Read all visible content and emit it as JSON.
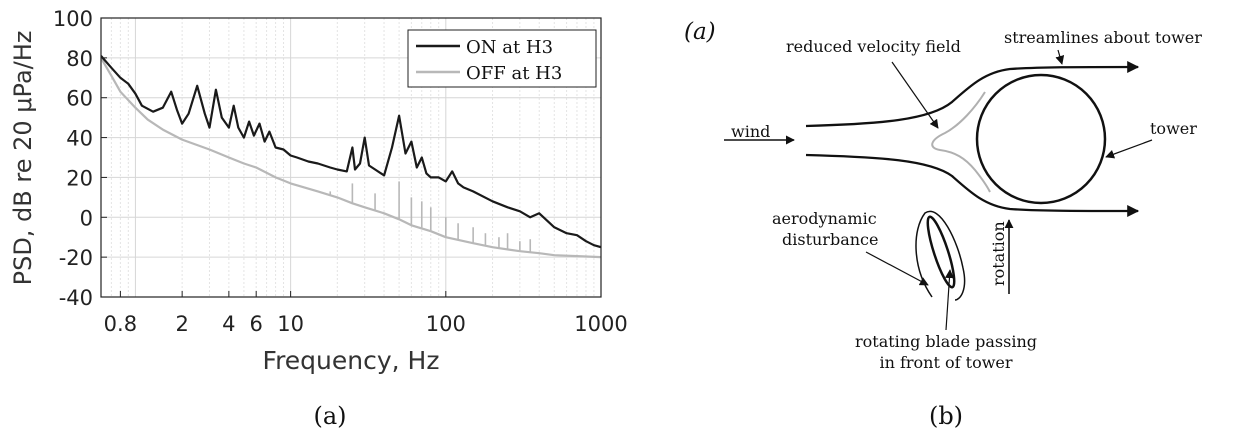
{
  "figure_a": {
    "caption": "(a)",
    "chart_data": {
      "type": "line",
      "xlabel": "Frequency, Hz",
      "ylabel": "PSD, dB re 20 μPa/Hz",
      "xscale": "log",
      "xlim": [
        0.6,
        1000
      ],
      "ylim": [
        -40,
        100
      ],
      "grid": true,
      "legend_position": "top-right",
      "x_ticks": [
        0.8,
        2,
        4,
        6,
        10,
        100,
        1000
      ],
      "x_tick_labels": [
        "0.8",
        "2",
        "4",
        "6",
        "10",
        "100",
        "1000"
      ],
      "y_ticks": [
        -40,
        -20,
        0,
        20,
        40,
        60,
        80,
        100
      ],
      "y_tick_labels": [
        "-40",
        "-20",
        "0",
        "20",
        "40",
        "60",
        "80",
        "100"
      ],
      "series": [
        {
          "name": "ON at H3",
          "color": "#1a1a1a",
          "points": [
            [
              0.6,
              81
            ],
            [
              0.7,
              75
            ],
            [
              0.8,
              70
            ],
            [
              0.9,
              67
            ],
            [
              1.0,
              62
            ],
            [
              1.1,
              56
            ],
            [
              1.3,
              53
            ],
            [
              1.5,
              55
            ],
            [
              1.7,
              63
            ],
            [
              1.85,
              54
            ],
            [
              2.0,
              47
            ],
            [
              2.2,
              52
            ],
            [
              2.5,
              66
            ],
            [
              2.8,
              52
            ],
            [
              3.0,
              45
            ],
            [
              3.3,
              64
            ],
            [
              3.6,
              50
            ],
            [
              4.0,
              45
            ],
            [
              4.3,
              56
            ],
            [
              4.6,
              45
            ],
            [
              5.0,
              40
            ],
            [
              5.4,
              48
            ],
            [
              5.8,
              41
            ],
            [
              6.3,
              47
            ],
            [
              6.8,
              38
            ],
            [
              7.3,
              43
            ],
            [
              8.0,
              35
            ],
            [
              9.0,
              34
            ],
            [
              10,
              31
            ],
            [
              11,
              30
            ],
            [
              13,
              28
            ],
            [
              15,
              27
            ],
            [
              18,
              25
            ],
            [
              20,
              24
            ],
            [
              23,
              23
            ],
            [
              25,
              35
            ],
            [
              26,
              24
            ],
            [
              28,
              27
            ],
            [
              30,
              40
            ],
            [
              32,
              26
            ],
            [
              35,
              24
            ],
            [
              40,
              21
            ],
            [
              45,
              35
            ],
            [
              50,
              51
            ],
            [
              55,
              32
            ],
            [
              60,
              38
            ],
            [
              65,
              25
            ],
            [
              70,
              30
            ],
            [
              75,
              22
            ],
            [
              80,
              20
            ],
            [
              90,
              20
            ],
            [
              100,
              18
            ],
            [
              110,
              23
            ],
            [
              120,
              17
            ],
            [
              130,
              15
            ],
            [
              150,
              13
            ],
            [
              200,
              8
            ],
            [
              250,
              5
            ],
            [
              300,
              3
            ],
            [
              350,
              0
            ],
            [
              400,
              2
            ],
            [
              500,
              -5
            ],
            [
              600,
              -8
            ],
            [
              700,
              -9
            ],
            [
              800,
              -12
            ],
            [
              900,
              -14
            ],
            [
              1000,
              -15
            ]
          ]
        },
        {
          "name": "OFF at H3",
          "color": "#b8b8b8",
          "points": [
            [
              0.6,
              80
            ],
            [
              0.7,
              71
            ],
            [
              0.8,
              63
            ],
            [
              1.0,
              55
            ],
            [
              1.2,
              49
            ],
            [
              1.5,
              44
            ],
            [
              2.0,
              39
            ],
            [
              3.0,
              34
            ],
            [
              4.0,
              30
            ],
            [
              5.0,
              27
            ],
            [
              6.0,
              25
            ],
            [
              8.0,
              20
            ],
            [
              10,
              17
            ],
            [
              15,
              13
            ],
            [
              20,
              10
            ],
            [
              25,
              7
            ],
            [
              30,
              5
            ],
            [
              40,
              2
            ],
            [
              50,
              -1
            ],
            [
              60,
              -4
            ],
            [
              80,
              -7
            ],
            [
              100,
              -10
            ],
            [
              150,
              -13
            ],
            [
              200,
              -15
            ],
            [
              300,
              -17
            ],
            [
              400,
              -18
            ],
            [
              500,
              -19
            ],
            [
              700,
              -19.5
            ],
            [
              1000,
              -20
            ]
          ],
          "spikes": [
            [
              18,
              13
            ],
            [
              25,
              17
            ],
            [
              35,
              12
            ],
            [
              50,
              18
            ],
            [
              60,
              10
            ],
            [
              70,
              8
            ],
            [
              80,
              5
            ],
            [
              100,
              0
            ],
            [
              120,
              -3
            ],
            [
              150,
              -5
            ],
            [
              180,
              -8
            ],
            [
              220,
              -10
            ],
            [
              250,
              -8
            ],
            [
              300,
              -12
            ],
            [
              350,
              -11
            ]
          ]
        }
      ]
    }
  },
  "figure_b": {
    "caption": "(b)",
    "panel_label": "(a)",
    "labels": {
      "reduced_velocity": "reduced velocity field",
      "streamlines": "streamlines about tower",
      "tower": "tower",
      "wind": "wind",
      "aerodynamic_1": "aerodynamic",
      "aerodynamic_2": "disturbance",
      "rotation": "rotation",
      "blade_1": "rotating blade passing",
      "blade_2": "in front of tower"
    }
  }
}
